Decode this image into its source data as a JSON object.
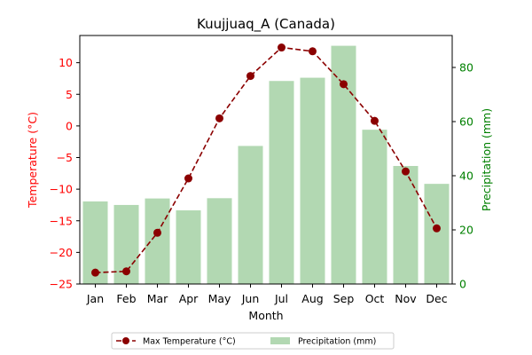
{
  "chart_data": {
    "type": "bar+line",
    "title": "Kuujjuaq_A (Canada)",
    "xlabel": "Month",
    "ylabel_left": "Temperature (°C)",
    "ylabel_right": "Precipitation (mm)",
    "categories": [
      "Jan",
      "Feb",
      "Mar",
      "Apr",
      "May",
      "Jun",
      "Jul",
      "Aug",
      "Sep",
      "Oct",
      "Nov",
      "Dec"
    ],
    "left_axis": {
      "ylim": [
        -25,
        14.3
      ],
      "ticks": [
        -25,
        -20,
        -15,
        -10,
        -5,
        0,
        5,
        10
      ],
      "color": "#ff0000"
    },
    "right_axis": {
      "ylim": [
        0,
        91.8
      ],
      "ticks": [
        0,
        20,
        40,
        60,
        80
      ],
      "color": "#008000"
    },
    "series": [
      {
        "name": "Max Temperature (°C)",
        "kind": "line",
        "axis": "left",
        "color": "#8b0000",
        "line_style": "dashed",
        "marker": "circle",
        "values": [
          -23.2,
          -23.0,
          -16.9,
          -8.3,
          1.2,
          7.9,
          12.4,
          11.8,
          6.6,
          0.8,
          -7.2,
          -16.2
        ]
      },
      {
        "name": "Precipitation (mm)",
        "kind": "bar",
        "axis": "right",
        "color": "#b2d8b2",
        "values": [
          30.5,
          29.2,
          31.6,
          27.2,
          31.7,
          51.0,
          75.0,
          76.2,
          88.0,
          57.0,
          43.6,
          37.0
        ]
      }
    ],
    "legend": {
      "position": "bottom-center",
      "columns": 2
    }
  }
}
